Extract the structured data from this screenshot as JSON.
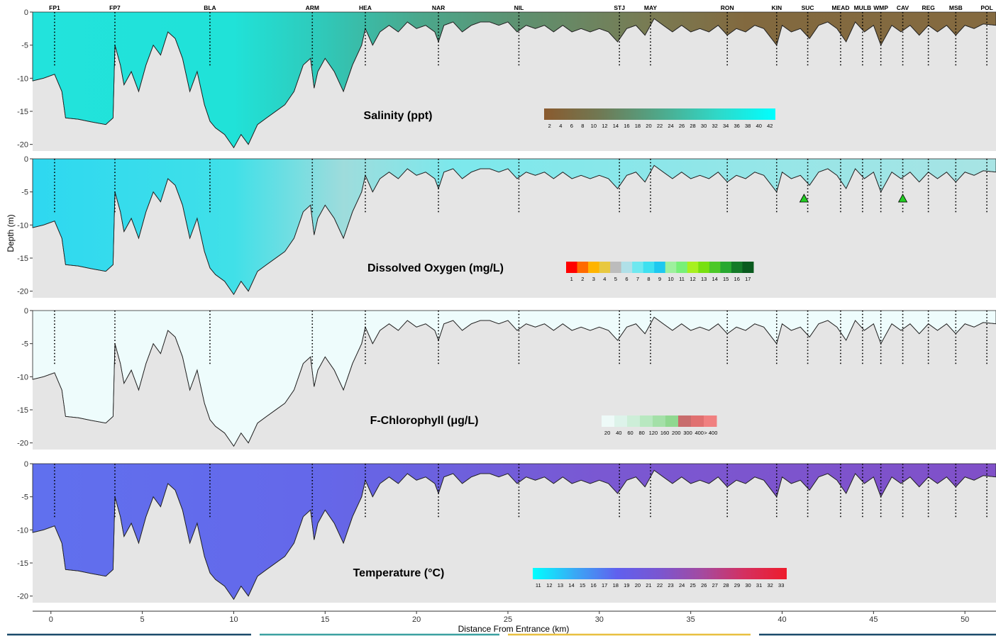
{
  "chart_data": {
    "type": "heatmap",
    "xlabel": "Distance From Entrance (km)",
    "ylabel": "Depth (m)",
    "xlim": [
      -1,
      51.7
    ],
    "ylim": [
      -21,
      0
    ],
    "x_ticks": [
      0,
      5,
      10,
      15,
      20,
      25,
      30,
      35,
      40,
      45,
      50
    ],
    "y_ticks": [
      0,
      -5,
      -10,
      -15,
      -20
    ],
    "stations": [
      {
        "name": "FP1",
        "km": 0.2
      },
      {
        "name": "FP7",
        "km": 3.5
      },
      {
        "name": "BLA",
        "km": 8.7
      },
      {
        "name": "ARM",
        "km": 14.3
      },
      {
        "name": "HEA",
        "km": 17.2
      },
      {
        "name": "NAR",
        "km": 21.2
      },
      {
        "name": "NIL",
        "km": 25.6
      },
      {
        "name": "STJ",
        "km": 31.1
      },
      {
        "name": "MAY",
        "km": 32.8
      },
      {
        "name": "RON",
        "km": 37.0
      },
      {
        "name": "KIN",
        "km": 39.7
      },
      {
        "name": "SUC",
        "km": 41.4
      },
      {
        "name": "MEAD",
        "km": 43.2
      },
      {
        "name": "MULB",
        "km": 44.4
      },
      {
        "name": "WMP",
        "km": 45.4
      },
      {
        "name": "CAV",
        "km": 46.6
      },
      {
        "name": "REG",
        "km": 48.0
      },
      {
        "name": "MSB",
        "km": 49.5
      },
      {
        "name": "POL",
        "km": 51.2
      }
    ],
    "bottom_profile": [
      [
        -1,
        -10.4
      ],
      [
        -0.4,
        -10.0
      ],
      [
        0.2,
        -9.4
      ],
      [
        0.6,
        -12.0
      ],
      [
        0.8,
        -16.0
      ],
      [
        1.5,
        -16.2
      ],
      [
        2.2,
        -16.6
      ],
      [
        3.0,
        -17.0
      ],
      [
        3.4,
        -16.0
      ],
      [
        3.5,
        -5.0
      ],
      [
        3.8,
        -8.0
      ],
      [
        4.0,
        -11.0
      ],
      [
        4.4,
        -9.0
      ],
      [
        4.8,
        -12.0
      ],
      [
        5.2,
        -8.0
      ],
      [
        5.6,
        -5.0
      ],
      [
        6.0,
        -6.5
      ],
      [
        6.4,
        -3.0
      ],
      [
        6.8,
        -4.0
      ],
      [
        7.2,
        -7.0
      ],
      [
        7.6,
        -12.0
      ],
      [
        8.0,
        -9.0
      ],
      [
        8.4,
        -14.0
      ],
      [
        8.7,
        -16.5
      ],
      [
        9.0,
        -17.5
      ],
      [
        9.5,
        -18.5
      ],
      [
        10.0,
        -20.5
      ],
      [
        10.4,
        -18.5
      ],
      [
        10.8,
        -20.0
      ],
      [
        11.3,
        -17.0
      ],
      [
        11.8,
        -16.0
      ],
      [
        12.3,
        -15.0
      ],
      [
        12.8,
        -14.0
      ],
      [
        13.3,
        -12.0
      ],
      [
        13.8,
        -8.0
      ],
      [
        14.2,
        -7.0
      ],
      [
        14.4,
        -11.5
      ],
      [
        14.6,
        -9.0
      ],
      [
        15.0,
        -7.0
      ],
      [
        15.5,
        -9.0
      ],
      [
        16.0,
        -12.0
      ],
      [
        16.5,
        -8.0
      ],
      [
        17.0,
        -5.0
      ],
      [
        17.2,
        -2.5
      ],
      [
        17.6,
        -5.0
      ],
      [
        18.0,
        -3.0
      ],
      [
        18.5,
        -2.0
      ],
      [
        19.0,
        -3.0
      ],
      [
        19.5,
        -1.5
      ],
      [
        20.0,
        -2.5
      ],
      [
        20.5,
        -2.0
      ],
      [
        21.0,
        -3.0
      ],
      [
        21.2,
        -4.5
      ],
      [
        21.5,
        -2.0
      ],
      [
        22.0,
        -1.5
      ],
      [
        22.5,
        -3.0
      ],
      [
        23.0,
        -2.0
      ],
      [
        23.5,
        -1.5
      ],
      [
        24.0,
        -1.5
      ],
      [
        24.5,
        -2.0
      ],
      [
        25.0,
        -1.5
      ],
      [
        25.5,
        -3.0
      ],
      [
        26.0,
        -2.0
      ],
      [
        26.5,
        -2.5
      ],
      [
        27.0,
        -2.0
      ],
      [
        27.5,
        -3.0
      ],
      [
        28.0,
        -2.0
      ],
      [
        28.5,
        -3.0
      ],
      [
        29.0,
        -2.5
      ],
      [
        29.5,
        -3.0
      ],
      [
        30.0,
        -2.5
      ],
      [
        30.5,
        -3.0
      ],
      [
        31.0,
        -4.5
      ],
      [
        31.5,
        -2.5
      ],
      [
        32.0,
        -2.0
      ],
      [
        32.5,
        -3.5
      ],
      [
        33.0,
        -1.0
      ],
      [
        33.5,
        -2.0
      ],
      [
        34.0,
        -3.0
      ],
      [
        34.5,
        -2.0
      ],
      [
        35.0,
        -3.0
      ],
      [
        35.5,
        -2.5
      ],
      [
        36.0,
        -3.0
      ],
      [
        36.5,
        -2.0
      ],
      [
        37.0,
        -3.5
      ],
      [
        37.5,
        -2.5
      ],
      [
        38.0,
        -3.0
      ],
      [
        38.5,
        -2.0
      ],
      [
        39.0,
        -2.5
      ],
      [
        39.7,
        -5.0
      ],
      [
        40.0,
        -2.0
      ],
      [
        40.5,
        -3.0
      ],
      [
        41.0,
        -2.5
      ],
      [
        41.5,
        -4.0
      ],
      [
        42.0,
        -2.0
      ],
      [
        42.5,
        -1.5
      ],
      [
        43.0,
        -2.5
      ],
      [
        43.5,
        -4.5
      ],
      [
        44.0,
        -1.5
      ],
      [
        44.5,
        -3.0
      ],
      [
        45.0,
        -2.0
      ],
      [
        45.4,
        -5.0
      ],
      [
        46.0,
        -2.0
      ],
      [
        46.5,
        -3.0
      ],
      [
        47.0,
        -2.0
      ],
      [
        47.5,
        -3.5
      ],
      [
        48.0,
        -2.0
      ],
      [
        48.5,
        -3.0
      ],
      [
        49.0,
        -2.0
      ],
      [
        49.5,
        -3.5
      ],
      [
        50.0,
        -2.0
      ],
      [
        50.5,
        -2.5
      ],
      [
        51.0,
        -1.8
      ],
      [
        51.7,
        -2.0
      ]
    ],
    "panels": [
      {
        "title": "Salinity (ppt)",
        "legend_ticks": [
          "2",
          "4",
          "6",
          "8",
          "10",
          "12",
          "14",
          "16",
          "18",
          "20",
          "22",
          "24",
          "26",
          "28",
          "30",
          "32",
          "34",
          "36",
          "38",
          "40",
          "42"
        ],
        "legend_gradient": [
          "#8a5a2e",
          "#6f7a55",
          "#4fa88a",
          "#2fd8c8",
          "#00ffff"
        ],
        "fill_stops": [
          [
            -1,
            "#22e3dc"
          ],
          [
            10,
            "#20e2d8"
          ],
          [
            15,
            "#30c8b8"
          ],
          [
            20,
            "#4aa88d"
          ],
          [
            26,
            "#5f8f6e"
          ],
          [
            33,
            "#7a7a52"
          ],
          [
            38,
            "#82693f"
          ],
          [
            51.7,
            "#846a40"
          ]
        ]
      },
      {
        "title": "Dissolved Oxygen (mg/L)",
        "legend_ticks": [
          "1",
          "2",
          "3",
          "4",
          "5",
          "6",
          "7",
          "8",
          "9",
          "10",
          "11",
          "12",
          "13",
          "14",
          "15",
          "16",
          "17"
        ],
        "legend_colors": [
          "#ff0000",
          "#ff6a00",
          "#ffb400",
          "#e8c840",
          "#bcbcbc",
          "#b0e0e8",
          "#6ee8f0",
          "#3ee0f0",
          "#1ec8f0",
          "#9ef09e",
          "#78f078",
          "#a8f020",
          "#78e010",
          "#4cc828",
          "#28a830",
          "#147a28",
          "#0a5a1e"
        ],
        "fill_stops": [
          [
            -1,
            "#2ed8f0"
          ],
          [
            10,
            "#40e0e8"
          ],
          [
            16,
            "#9edcdc"
          ],
          [
            22,
            "#7ce8ec"
          ],
          [
            51.7,
            "#a8e4e4"
          ]
        ],
        "markers": [
          {
            "km": 41.2,
            "depth": -6.0,
            "shape": "triangle",
            "color": "#22cc22"
          },
          {
            "km": 46.6,
            "depth": -6.0,
            "shape": "triangle",
            "color": "#22cc22"
          }
        ]
      },
      {
        "title": "F-Chlorophyll (μg/L)",
        "legend_ticks": [
          "20",
          "40",
          "60",
          "80",
          "120",
          "160",
          "200",
          "300",
          "400",
          "> 400"
        ],
        "legend_colors": [
          "#eefaf8",
          "#ddf3ea",
          "#cdeed8",
          "#b8e8c0",
          "#a4e0a8",
          "#90d890",
          "#c86c6c",
          "#e07070",
          "#f08080"
        ],
        "fill_stops": [
          [
            -1,
            "#eefcfc"
          ],
          [
            51.7,
            "#eefcfc"
          ]
        ]
      },
      {
        "title": "Temperature (°C)",
        "legend_ticks": [
          "11",
          "12",
          "13",
          "14",
          "15",
          "16",
          "17",
          "18",
          "19",
          "20",
          "21",
          "22",
          "23",
          "24",
          "25",
          "26",
          "27",
          "28",
          "29",
          "30",
          "31",
          "32",
          "33"
        ],
        "legend_gradient": [
          "#00ffff",
          "#3aa8f5",
          "#6060ee",
          "#7a56d0",
          "#a44aa0",
          "#d43060",
          "#ee1c2c"
        ],
        "fill_stops": [
          [
            -1,
            "#6070ee"
          ],
          [
            14,
            "#6468ea"
          ],
          [
            20,
            "#6a62e0"
          ],
          [
            30,
            "#7a58d2"
          ],
          [
            51.7,
            "#8050c8"
          ]
        ]
      }
    ]
  }
}
